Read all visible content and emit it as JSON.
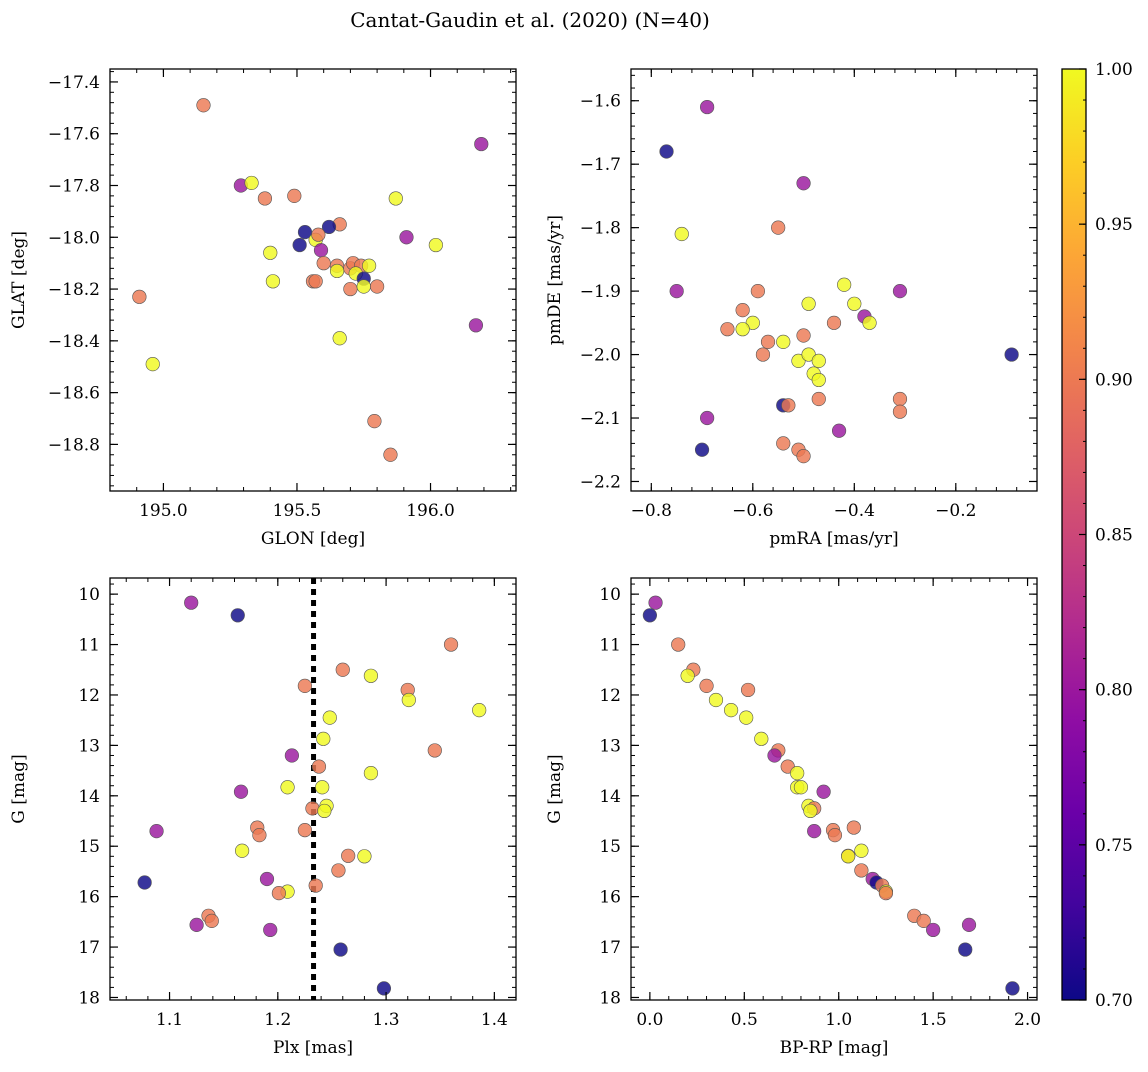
{
  "title": "Cantat-Gaudin et al. (2020) (N=40)",
  "colors": {
    "scale": [
      "#0d0887",
      "#41049d",
      "#6a00a8",
      "#8f0da4",
      "#b12a90",
      "#cc4778",
      "#e16462",
      "#f2844b",
      "#fca636",
      "#fcce25",
      "#f0f921"
    ],
    "point_edge": "#555555"
  },
  "colorbar": {
    "min": 0.7,
    "max": 1.0,
    "ticks": [
      "0.70",
      "0.75",
      "0.80",
      "0.85",
      "0.90",
      "0.95",
      "1.00"
    ]
  },
  "chart_data": [
    {
      "id": "glon-glat",
      "type": "scatter",
      "xlabel": "GLON [deg]",
      "ylabel": "GLAT [deg]",
      "xlim": [
        194.8,
        196.32
      ],
      "ylim": [
        -18.98,
        -17.35
      ],
      "xticks": [
        {
          "v": 195.0,
          "label": "195.0"
        },
        {
          "v": 195.5,
          "label": "195.5"
        },
        {
          "v": 196.0,
          "label": "196.0"
        }
      ],
      "yticks": [
        {
          "v": -17.4,
          "label": "−17.4"
        },
        {
          "v": -17.6,
          "label": "−17.6"
        },
        {
          "v": -17.8,
          "label": "−17.8"
        },
        {
          "v": -18.0,
          "label": "−18.0"
        },
        {
          "v": -18.2,
          "label": "−18.2"
        },
        {
          "v": -18.4,
          "label": "−18.4"
        },
        {
          "v": -18.6,
          "label": "−18.6"
        },
        {
          "v": -18.8,
          "label": "−18.8"
        }
      ],
      "points": [
        [
          195.15,
          -17.49,
          0.9
        ],
        [
          195.29,
          -17.8,
          0.8
        ],
        [
          195.33,
          -17.79,
          1.0
        ],
        [
          195.38,
          -17.85,
          0.9
        ],
        [
          195.49,
          -17.84,
          0.9
        ],
        [
          195.66,
          -17.95,
          0.9
        ],
        [
          195.87,
          -17.85,
          1.0
        ],
        [
          195.53,
          -17.98,
          0.7
        ],
        [
          195.62,
          -17.96,
          0.7
        ],
        [
          195.51,
          -18.03,
          0.7
        ],
        [
          195.57,
          -18.01,
          1.0
        ],
        [
          195.58,
          -17.99,
          0.9
        ],
        [
          195.59,
          -18.05,
          0.8
        ],
        [
          195.91,
          -18.0,
          0.8
        ],
        [
          196.02,
          -18.03,
          1.0
        ],
        [
          195.4,
          -18.06,
          1.0
        ],
        [
          195.6,
          -18.1,
          0.9
        ],
        [
          195.65,
          -18.11,
          0.9
        ],
        [
          195.7,
          -18.12,
          0.9
        ],
        [
          195.71,
          -18.1,
          0.9
        ],
        [
          195.74,
          -18.11,
          0.9
        ],
        [
          195.77,
          -18.11,
          1.0
        ],
        [
          195.72,
          -18.14,
          1.0
        ],
        [
          195.75,
          -18.16,
          0.7
        ],
        [
          195.65,
          -18.13,
          1.0
        ],
        [
          195.56,
          -18.17,
          0.9
        ],
        [
          195.57,
          -18.17,
          0.9
        ],
        [
          195.41,
          -18.17,
          1.0
        ],
        [
          195.7,
          -18.2,
          0.9
        ],
        [
          195.75,
          -18.19,
          1.0
        ],
        [
          195.8,
          -18.19,
          0.9
        ],
        [
          194.91,
          -18.23,
          0.9
        ],
        [
          196.17,
          -18.34,
          0.8
        ],
        [
          195.66,
          -18.39,
          1.0
        ],
        [
          194.96,
          -18.49,
          1.0
        ],
        [
          195.79,
          -18.71,
          0.9
        ],
        [
          195.85,
          -18.84,
          0.9
        ],
        [
          196.19,
          -17.64,
          0.8
        ]
      ]
    },
    {
      "id": "pm",
      "type": "scatter",
      "xlabel": "pmRA [mas/yr]",
      "ylabel": "pmDE [mas/yr]",
      "xlim": [
        -0.84,
        -0.04
      ],
      "ylim": [
        -2.215,
        -1.55
      ],
      "xticks": [
        {
          "v": -0.8,
          "label": "−0.8"
        },
        {
          "v": -0.6,
          "label": "−0.6"
        },
        {
          "v": -0.4,
          "label": "−0.4"
        },
        {
          "v": -0.2,
          "label": "−0.2"
        }
      ],
      "yticks": [
        {
          "v": -1.6,
          "label": "−1.6"
        },
        {
          "v": -1.7,
          "label": "−1.7"
        },
        {
          "v": -1.8,
          "label": "−1.8"
        },
        {
          "v": -1.9,
          "label": "−1.9"
        },
        {
          "v": -2.0,
          "label": "−2.0"
        },
        {
          "v": -2.1,
          "label": "−2.1"
        },
        {
          "v": -2.2,
          "label": "−2.2"
        }
      ],
      "points": [
        [
          -0.69,
          -1.61,
          0.8
        ],
        [
          -0.77,
          -1.68,
          0.7
        ],
        [
          -0.5,
          -1.73,
          0.8
        ],
        [
          -0.74,
          -1.81,
          1.0
        ],
        [
          -0.55,
          -1.8,
          0.9
        ],
        [
          -0.75,
          -1.9,
          0.8
        ],
        [
          -0.59,
          -1.9,
          0.9
        ],
        [
          -0.42,
          -1.89,
          1.0
        ],
        [
          -0.31,
          -1.9,
          0.8
        ],
        [
          -0.49,
          -1.92,
          1.0
        ],
        [
          -0.4,
          -1.92,
          1.0
        ],
        [
          -0.62,
          -1.93,
          0.9
        ],
        [
          -0.38,
          -1.94,
          0.8
        ],
        [
          -0.44,
          -1.95,
          0.9
        ],
        [
          -0.37,
          -1.95,
          1.0
        ],
        [
          -0.6,
          -1.95,
          1.0
        ],
        [
          -0.65,
          -1.96,
          0.9
        ],
        [
          -0.62,
          -1.96,
          1.0
        ],
        [
          -0.5,
          -1.97,
          0.9
        ],
        [
          -0.57,
          -1.98,
          0.9
        ],
        [
          -0.54,
          -1.98,
          1.0
        ],
        [
          -0.58,
          -2.0,
          0.9
        ],
        [
          -0.51,
          -2.01,
          1.0
        ],
        [
          -0.49,
          -2.0,
          1.0
        ],
        [
          -0.47,
          -2.01,
          1.0
        ],
        [
          -0.09,
          -2.0,
          0.7
        ],
        [
          -0.48,
          -2.03,
          1.0
        ],
        [
          -0.47,
          -2.04,
          1.0
        ],
        [
          -0.47,
          -2.07,
          0.9
        ],
        [
          -0.31,
          -2.07,
          0.9
        ],
        [
          -0.54,
          -2.08,
          0.7
        ],
        [
          -0.53,
          -2.08,
          0.9
        ],
        [
          -0.31,
          -2.09,
          0.9
        ],
        [
          -0.69,
          -2.1,
          0.8
        ],
        [
          -0.43,
          -2.12,
          0.8
        ],
        [
          -0.54,
          -2.14,
          0.9
        ],
        [
          -0.51,
          -2.15,
          0.9
        ],
        [
          -0.5,
          -2.16,
          0.9
        ],
        [
          -0.7,
          -2.15,
          0.7
        ]
      ]
    },
    {
      "id": "plx-g",
      "type": "scatter",
      "xlabel": "Plx [mas]",
      "ylabel": "G [mag]",
      "xlim": [
        1.045,
        1.42
      ],
      "ylim": [
        18.05,
        9.68
      ],
      "vline": 1.233,
      "xticks": [
        {
          "v": 1.1,
          "label": "1.1"
        },
        {
          "v": 1.2,
          "label": "1.2"
        },
        {
          "v": 1.3,
          "label": "1.3"
        },
        {
          "v": 1.4,
          "label": "1.4"
        }
      ],
      "yticks": [
        {
          "v": 10,
          "label": "10"
        },
        {
          "v": 11,
          "label": "11"
        },
        {
          "v": 12,
          "label": "12"
        },
        {
          "v": 13,
          "label": "13"
        },
        {
          "v": 14,
          "label": "14"
        },
        {
          "v": 15,
          "label": "15"
        },
        {
          "v": 16,
          "label": "16"
        },
        {
          "v": 17,
          "label": "17"
        },
        {
          "v": 18,
          "label": "18"
        }
      ],
      "points": [
        [
          1.12,
          10.17,
          0.8
        ],
        [
          1.163,
          10.42,
          0.7
        ],
        [
          1.36,
          11.0,
          0.9
        ],
        [
          1.26,
          11.5,
          0.9
        ],
        [
          1.286,
          11.62,
          1.0
        ],
        [
          1.225,
          11.82,
          0.9
        ],
        [
          1.32,
          11.9,
          0.9
        ],
        [
          1.321,
          12.1,
          1.0
        ],
        [
          1.386,
          12.3,
          1.0
        ],
        [
          1.248,
          12.45,
          1.0
        ],
        [
          1.242,
          12.87,
          1.0
        ],
        [
          1.345,
          13.1,
          0.9
        ],
        [
          1.213,
          13.2,
          0.8
        ],
        [
          1.238,
          13.42,
          0.9
        ],
        [
          1.286,
          13.55,
          1.0
        ],
        [
          1.209,
          13.83,
          1.0
        ],
        [
          1.241,
          13.83,
          1.0
        ],
        [
          1.166,
          13.92,
          0.8
        ],
        [
          1.245,
          14.2,
          1.0
        ],
        [
          1.232,
          14.25,
          0.9
        ],
        [
          1.243,
          14.3,
          1.0
        ],
        [
          1.181,
          14.63,
          0.9
        ],
        [
          1.225,
          14.68,
          0.9
        ],
        [
          1.088,
          14.7,
          0.8
        ],
        [
          1.183,
          14.78,
          0.9
        ],
        [
          1.167,
          15.09,
          1.0
        ],
        [
          1.265,
          15.19,
          0.9
        ],
        [
          1.28,
          15.2,
          1.0
        ],
        [
          1.256,
          15.48,
          0.9
        ],
        [
          1.19,
          15.65,
          0.8
        ],
        [
          1.077,
          15.72,
          0.7
        ],
        [
          1.235,
          15.78,
          0.9
        ],
        [
          1.209,
          15.9,
          1.0
        ],
        [
          1.201,
          15.93,
          0.9
        ],
        [
          1.136,
          16.38,
          0.9
        ],
        [
          1.139,
          16.48,
          0.9
        ],
        [
          1.125,
          16.56,
          0.8
        ],
        [
          1.193,
          16.66,
          0.8
        ],
        [
          1.258,
          17.05,
          0.7
        ],
        [
          1.298,
          17.82,
          0.7
        ]
      ]
    },
    {
      "id": "cmd",
      "type": "scatter",
      "xlabel": "BP-RP [mag]",
      "ylabel": "G [mag]",
      "xlim": [
        -0.1,
        2.05
      ],
      "ylim": [
        18.05,
        9.68
      ],
      "xticks": [
        {
          "v": 0.0,
          "label": "0.0"
        },
        {
          "v": 0.5,
          "label": "0.5"
        },
        {
          "v": 1.0,
          "label": "1.0"
        },
        {
          "v": 1.5,
          "label": "1.5"
        },
        {
          "v": 2.0,
          "label": "2.0"
        }
      ],
      "yticks": [
        {
          "v": 10,
          "label": "10"
        },
        {
          "v": 11,
          "label": "11"
        },
        {
          "v": 12,
          "label": "12"
        },
        {
          "v": 13,
          "label": "13"
        },
        {
          "v": 14,
          "label": "14"
        },
        {
          "v": 15,
          "label": "15"
        },
        {
          "v": 16,
          "label": "16"
        },
        {
          "v": 17,
          "label": "17"
        },
        {
          "v": 18,
          "label": "18"
        }
      ],
      "points": [
        [
          0.03,
          10.17,
          0.8
        ],
        [
          0.0,
          10.42,
          0.7
        ],
        [
          0.15,
          11.0,
          0.9
        ],
        [
          0.23,
          11.5,
          0.9
        ],
        [
          0.2,
          11.62,
          1.0
        ],
        [
          0.3,
          11.82,
          0.9
        ],
        [
          0.52,
          11.9,
          0.9
        ],
        [
          0.35,
          12.1,
          1.0
        ],
        [
          0.43,
          12.3,
          1.0
        ],
        [
          0.51,
          12.45,
          1.0
        ],
        [
          0.59,
          12.87,
          1.0
        ],
        [
          0.68,
          13.1,
          0.9
        ],
        [
          0.66,
          13.2,
          0.8
        ],
        [
          0.73,
          13.42,
          0.9
        ],
        [
          0.78,
          13.55,
          1.0
        ],
        [
          0.78,
          13.83,
          1.0
        ],
        [
          0.8,
          13.83,
          1.0
        ],
        [
          0.92,
          13.92,
          0.8
        ],
        [
          0.84,
          14.2,
          1.0
        ],
        [
          0.87,
          14.25,
          0.9
        ],
        [
          0.85,
          14.3,
          1.0
        ],
        [
          1.08,
          14.63,
          0.9
        ],
        [
          0.97,
          14.68,
          0.9
        ],
        [
          0.87,
          14.7,
          0.8
        ],
        [
          0.98,
          14.78,
          0.9
        ],
        [
          1.12,
          15.09,
          1.0
        ],
        [
          1.05,
          15.19,
          0.9
        ],
        [
          1.05,
          15.2,
          1.0
        ],
        [
          1.12,
          15.48,
          0.9
        ],
        [
          1.18,
          15.65,
          0.8
        ],
        [
          1.2,
          15.72,
          0.7
        ],
        [
          1.23,
          15.78,
          0.9
        ],
        [
          1.25,
          15.9,
          1.0
        ],
        [
          1.25,
          15.93,
          0.9
        ],
        [
          1.4,
          16.38,
          0.9
        ],
        [
          1.45,
          16.48,
          0.9
        ],
        [
          1.69,
          16.56,
          0.8
        ],
        [
          1.5,
          16.66,
          0.8
        ],
        [
          1.67,
          17.05,
          0.7
        ],
        [
          1.92,
          17.82,
          0.7
        ]
      ]
    }
  ]
}
